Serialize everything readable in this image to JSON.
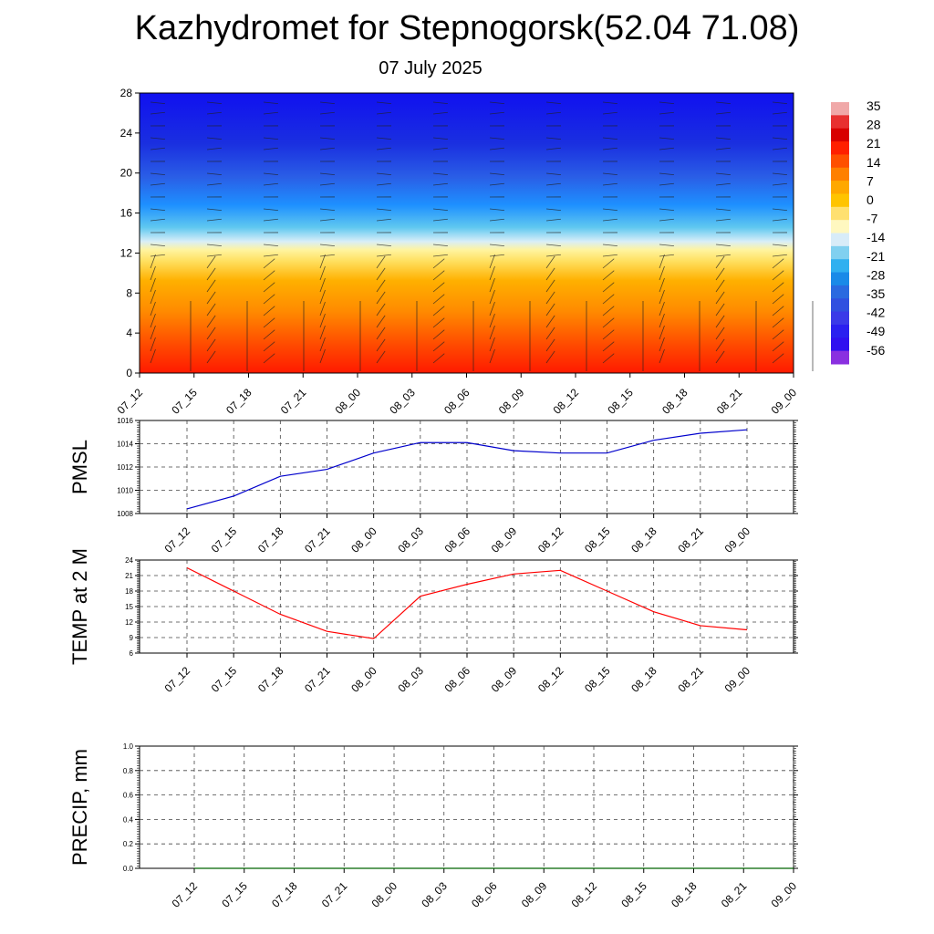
{
  "title": "Kazhydromet for Stepnogorsk(52.04 71.08)",
  "subtitle": "07 July 2025",
  "chart_data": [
    {
      "type": "heatmap",
      "panel": "cross-section",
      "x": [
        "07_12",
        "07_15",
        "07_18",
        "07_21",
        "08_00",
        "08_03",
        "08_06",
        "08_09",
        "08_12",
        "08_15",
        "08_18",
        "08_21",
        "09_00"
      ],
      "y_ticks": [
        0,
        4,
        8,
        12,
        16,
        20,
        24,
        28
      ],
      "ylim": [
        0,
        28
      ],
      "colorbar_labels": [
        "35",
        "28",
        "21",
        "14",
        "7",
        "0",
        "-7",
        "-14",
        "-21",
        "-28",
        "-35",
        "-42",
        "-49",
        "-56"
      ],
      "note_wind": "wind barbs overlay"
    },
    {
      "type": "line",
      "panel": "pmsl",
      "ylabel": "PMSL",
      "x": [
        "07_12",
        "07_15",
        "07_18",
        "07_21",
        "08_00",
        "08_03",
        "08_06",
        "08_09",
        "08_12",
        "08_15",
        "08_18",
        "08_21",
        "09_00"
      ],
      "values": [
        1008.4,
        1009.5,
        1011.2,
        1011.8,
        1013.2,
        1014.1,
        1014.1,
        1013.4,
        1013.2,
        1013.2,
        1014.3,
        1014.9,
        1015.2
      ],
      "y_ticks": [
        "1008",
        "1010",
        "1012",
        "1014",
        "1016"
      ],
      "ylim": [
        1008,
        1016
      ],
      "color": "#0000cc"
    },
    {
      "type": "line",
      "panel": "temp",
      "ylabel": "TEMP at 2 M",
      "x": [
        "07_12",
        "07_15",
        "07_18",
        "07_21",
        "08_00",
        "08_03",
        "08_06",
        "08_09",
        "08_12",
        "08_15",
        "08_18",
        "08_21",
        "09_00"
      ],
      "values": [
        22.5,
        18.0,
        13.5,
        10.2,
        8.8,
        17.0,
        19.3,
        21.3,
        22.0,
        18.0,
        14.0,
        11.3,
        10.5
      ],
      "y_ticks": [
        "6",
        "9",
        "12",
        "15",
        "18",
        "21",
        "24"
      ],
      "ylim": [
        6,
        24
      ],
      "color": "#ff0000"
    },
    {
      "type": "line",
      "panel": "precip",
      "ylabel": "PRECIP, mm",
      "x": [
        "07_12",
        "07_15",
        "07_18",
        "07_21",
        "08_00",
        "08_03",
        "08_06",
        "08_09",
        "08_12",
        "08_15",
        "08_18",
        "08_21",
        "09_00"
      ],
      "values": [
        0,
        0,
        0,
        0,
        0,
        0,
        0,
        0,
        0,
        0,
        0,
        0,
        0
      ],
      "y_ticks": [
        "0.0",
        "0.2",
        "0.4",
        "0.6",
        "0.8",
        "1.0"
      ],
      "ylim": [
        0,
        1
      ],
      "color": "#006400"
    }
  ]
}
